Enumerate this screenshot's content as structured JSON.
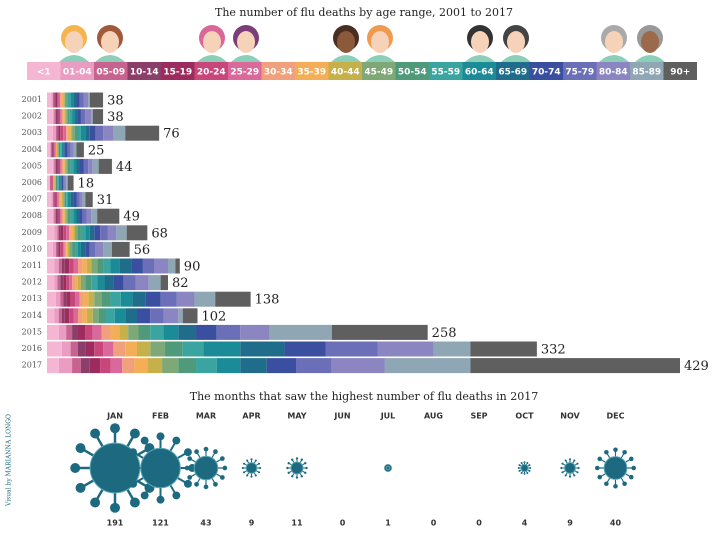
{
  "chart_data": [
    {
      "type": "bar",
      "stacked": true,
      "orientation": "horizontal",
      "title": "The number of flu deaths by age range, 2001 to 2017",
      "categories": [
        "2001",
        "2002",
        "2003",
        "2004",
        "2005",
        "2006",
        "2007",
        "2008",
        "2009",
        "2010",
        "2011",
        "2012",
        "2013",
        "2014",
        "2015",
        "2016",
        "2017"
      ],
      "totals": [
        38,
        38,
        76,
        25,
        44,
        18,
        31,
        49,
        68,
        56,
        90,
        82,
        138,
        102,
        258,
        332,
        429
      ],
      "xlim": [
        0,
        429
      ],
      "series_values_by_category": true,
      "series": [
        {
          "name": "<1",
          "color": "#f4b6d2",
          "values": [
            3,
            4,
            4,
            2,
            4,
            2,
            3,
            4,
            5,
            4,
            5,
            5,
            6,
            5,
            8,
            10,
            8
          ]
        },
        {
          "name": "01-04",
          "color": "#ea9cc3",
          "values": [
            1,
            1,
            2,
            1,
            1,
            0,
            1,
            1,
            2,
            2,
            3,
            2,
            3,
            3,
            5,
            6,
            9
          ]
        },
        {
          "name": "05-09",
          "color": "#c8628f",
          "values": [
            1,
            1,
            1,
            0,
            1,
            1,
            1,
            1,
            1,
            1,
            2,
            2,
            2,
            2,
            4,
            5,
            6
          ]
        },
        {
          "name": "10-14",
          "color": "#8c3e6a",
          "values": [
            1,
            1,
            1,
            1,
            1,
            0,
            1,
            1,
            1,
            1,
            2,
            2,
            2,
            2,
            4,
            5,
            6
          ]
        },
        {
          "name": "15-19",
          "color": "#9c2c5d",
          "values": [
            1,
            1,
            1,
            0,
            1,
            0,
            0,
            1,
            2,
            1,
            3,
            2,
            3,
            3,
            5,
            6,
            7
          ]
        },
        {
          "name": "20-24",
          "color": "#c9467a",
          "values": [
            1,
            1,
            2,
            1,
            1,
            1,
            1,
            1,
            2,
            2,
            3,
            2,
            3,
            3,
            5,
            6,
            7
          ]
        },
        {
          "name": "25-29",
          "color": "#d9689b",
          "values": [
            1,
            1,
            2,
            1,
            1,
            0,
            1,
            1,
            2,
            1,
            3,
            2,
            3,
            3,
            6,
            7,
            8
          ]
        },
        {
          "name": "30-34",
          "color": "#f0a07c",
          "values": [
            1,
            1,
            1,
            0,
            1,
            1,
            1,
            1,
            1,
            1,
            3,
            2,
            3,
            3,
            6,
            8,
            8
          ]
        },
        {
          "name": "35-39",
          "color": "#f4ae58",
          "values": [
            1,
            1,
            2,
            1,
            1,
            0,
            1,
            1,
            2,
            1,
            3,
            2,
            3,
            3,
            6,
            8,
            9
          ]
        },
        {
          "name": "40-44",
          "color": "#c6b04a",
          "values": [
            1,
            1,
            1,
            0,
            1,
            1,
            1,
            1,
            1,
            1,
            3,
            2,
            4,
            4,
            6,
            9,
            10
          ]
        },
        {
          "name": "45-49",
          "color": "#7ea875",
          "values": [
            1,
            1,
            2,
            1,
            1,
            0,
            1,
            1,
            2,
            2,
            4,
            3,
            5,
            4,
            7,
            10,
            11
          ]
        },
        {
          "name": "50-54",
          "color": "#4e9a7a",
          "values": [
            1,
            1,
            2,
            1,
            2,
            1,
            1,
            2,
            2,
            2,
            4,
            4,
            6,
            5,
            8,
            12,
            12
          ]
        },
        {
          "name": "55-59",
          "color": "#3aa5a0",
          "values": [
            2,
            2,
            2,
            1,
            2,
            1,
            1,
            2,
            3,
            2,
            5,
            4,
            7,
            6,
            9,
            14,
            14
          ]
        },
        {
          "name": "60-64",
          "color": "#1a8b97",
          "values": [
            2,
            2,
            3,
            1,
            2,
            1,
            2,
            2,
            3,
            2,
            6,
            5,
            8,
            7,
            10,
            25,
            16
          ]
        },
        {
          "name": "65-69",
          "color": "#1f6d8a",
          "values": [
            2,
            2,
            3,
            1,
            2,
            1,
            2,
            2,
            3,
            3,
            8,
            6,
            9,
            8,
            12,
            30,
            18
          ]
        },
        {
          "name": "70-74",
          "color": "#3a4fa0",
          "values": [
            2,
            2,
            4,
            2,
            3,
            1,
            2,
            2,
            4,
            3,
            8,
            7,
            10,
            9,
            14,
            28,
            20
          ]
        },
        {
          "name": "75-79",
          "color": "#6a6fb8",
          "values": [
            3,
            3,
            5,
            2,
            3,
            1,
            2,
            3,
            5,
            4,
            8,
            8,
            11,
            9,
            16,
            35,
            24
          ]
        },
        {
          "name": "80-84",
          "color": "#8b86c2",
          "values": [
            3,
            4,
            7,
            2,
            3,
            1,
            2,
            3,
            6,
            5,
            9,
            9,
            12,
            10,
            20,
            38,
            36
          ]
        },
        {
          "name": "85-89",
          "color": "#8fa6b4",
          "values": [
            1,
            1,
            8,
            2,
            4,
            1,
            2,
            4,
            7,
            6,
            5,
            8,
            14,
            3,
            42,
            25,
            58
          ]
        },
        {
          "name": "90+",
          "color": "#5f5f5f",
          "values": [
            9,
            7,
            23,
            5,
            9,
            4,
            5,
            15,
            14,
            12,
            3,
            5,
            24,
            10,
            65,
            45,
            142
          ]
        }
      ]
    },
    {
      "type": "bubble",
      "title": "The months that saw the highest number of flu deaths in 2017",
      "categories": [
        "JAN",
        "FEB",
        "MAR",
        "APR",
        "MAY",
        "JUN",
        "JUL",
        "AUG",
        "SEP",
        "OCT",
        "NOV",
        "DEC"
      ],
      "values": [
        191,
        121,
        43,
        9,
        11,
        0,
        1,
        0,
        0,
        4,
        9,
        40
      ],
      "color": "#1d6a80"
    },
    {
      "credit": "Visual by MARIANNA LONGO"
    }
  ]
}
